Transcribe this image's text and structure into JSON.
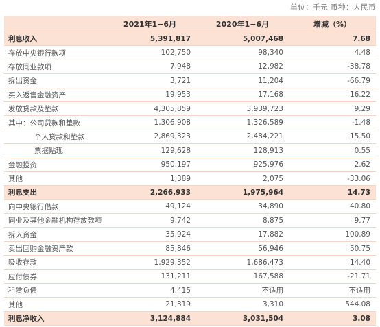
{
  "unit_note": "单位：千元  币种：人民币",
  "headers": [
    "",
    "2021年1−6月",
    "2020年1−6月",
    "增减（%）"
  ],
  "rows": [
    {
      "label": "利息收入",
      "v2021": "5,391,817",
      "v2020": "5,007,468",
      "change": "7.68",
      "highlight": true,
      "indent": false
    },
    {
      "label": "存放中央银行款项",
      "v2021": "102,750",
      "v2020": "98,340",
      "change": "4.48",
      "highlight": false,
      "indent": false
    },
    {
      "label": "存放同业款项",
      "v2021": "7,948",
      "v2020": "12,982",
      "change": "-38.78",
      "highlight": false,
      "indent": false
    },
    {
      "label": "拆出资金",
      "v2021": "3,721",
      "v2020": "11,204",
      "change": "-66.79",
      "highlight": false,
      "indent": false
    },
    {
      "label": "买入返售金融资产",
      "v2021": "19,953",
      "v2020": "17,168",
      "change": "16.22",
      "highlight": false,
      "indent": false
    },
    {
      "label": "发放贷款及垫款",
      "v2021": "4,305,859",
      "v2020": "3,939,723",
      "change": "9.29",
      "highlight": false,
      "indent": false
    },
    {
      "label": "其中：公司贷款和垫款",
      "v2021": "1,306,908",
      "v2020": "1,326,589",
      "change": "-1.48",
      "highlight": false,
      "indent": false
    },
    {
      "label": "个人贷款和垫款",
      "v2021": "2,869,323",
      "v2020": "2,484,221",
      "change": "15.50",
      "highlight": false,
      "indent": true
    },
    {
      "label": "票据贴现",
      "v2021": "129,628",
      "v2020": "128,913",
      "change": "0.55",
      "highlight": false,
      "indent": true
    },
    {
      "label": "金融投资",
      "v2021": "950,197",
      "v2020": "925,976",
      "change": "2.62",
      "highlight": false,
      "indent": false
    },
    {
      "label": "其他",
      "v2021": "1,389",
      "v2020": "2,075",
      "change": "-33.06",
      "highlight": false,
      "indent": false
    },
    {
      "label": "利息支出",
      "v2021": "2,266,933",
      "v2020": "1,975,964",
      "change": "14.73",
      "highlight": true,
      "indent": false
    },
    {
      "label": "向中央银行借款",
      "v2021": "49,124",
      "v2020": "34,890",
      "change": "40.80",
      "highlight": false,
      "indent": false
    },
    {
      "label": "同业及其他金融机构存放款项",
      "v2021": "9,742",
      "v2020": "8,875",
      "change": "9.77",
      "highlight": false,
      "indent": false
    },
    {
      "label": "拆入资金",
      "v2021": "35,924",
      "v2020": "17,882",
      "change": "100.89",
      "highlight": false,
      "indent": false
    },
    {
      "label": "卖出回购金融资产款",
      "v2021": "85,846",
      "v2020": "56,946",
      "change": "50.75",
      "highlight": false,
      "indent": false
    },
    {
      "label": "吸收存款",
      "v2021": "1,929,352",
      "v2020": "1,686,473",
      "change": "14.40",
      "highlight": false,
      "indent": false
    },
    {
      "label": "应付债券",
      "v2021": "131,211",
      "v2020": "167,588",
      "change": "-21.71",
      "highlight": false,
      "indent": false
    },
    {
      "label": "租赁负债",
      "v2021": "4,415",
      "v2020": "不适用",
      "change": "不适用",
      "highlight": false,
      "indent": false
    },
    {
      "label": "其他",
      "v2021": "21,319",
      "v2020": "3,310",
      "change": "544.08",
      "highlight": false,
      "indent": false
    },
    {
      "label": "利息净收入",
      "v2021": "3,124,884",
      "v2020": "3,031,504",
      "change": "3.08",
      "highlight": true,
      "indent": false
    }
  ]
}
